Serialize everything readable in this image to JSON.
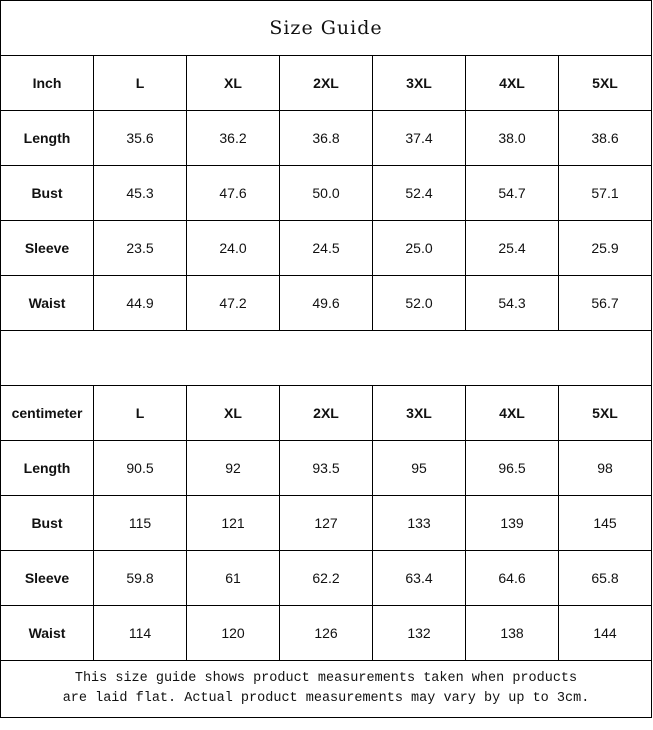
{
  "title": "Size Guide",
  "tables": [
    {
      "unit": "Inch",
      "sizes": [
        "L",
        "XL",
        "2XL",
        "3XL",
        "4XL",
        "5XL"
      ],
      "rows": [
        {
          "label": "Length",
          "values": [
            "35.6",
            "36.2",
            "36.8",
            "37.4",
            "38.0",
            "38.6"
          ]
        },
        {
          "label": "Bust",
          "values": [
            "45.3",
            "47.6",
            "50.0",
            "52.4",
            "54.7",
            "57.1"
          ]
        },
        {
          "label": "Sleeve",
          "values": [
            "23.5",
            "24.0",
            "24.5",
            "25.0",
            "25.4",
            "25.9"
          ]
        },
        {
          "label": "Waist",
          "values": [
            "44.9",
            "47.2",
            "49.6",
            "52.0",
            "54.3",
            "56.7"
          ]
        }
      ]
    },
    {
      "unit": "centimeter",
      "sizes": [
        "L",
        "XL",
        "2XL",
        "3XL",
        "4XL",
        "5XL"
      ],
      "rows": [
        {
          "label": "Length",
          "values": [
            "90.5",
            "92",
            "93.5",
            "95",
            "96.5",
            "98"
          ]
        },
        {
          "label": "Bust",
          "values": [
            "115",
            "121",
            "127",
            "133",
            "139",
            "145"
          ]
        },
        {
          "label": "Sleeve",
          "values": [
            "59.8",
            "61",
            "62.2",
            "63.4",
            "64.6",
            "65.8"
          ]
        },
        {
          "label": "Waist",
          "values": [
            "114",
            "120",
            "126",
            "132",
            "138",
            "144"
          ]
        }
      ]
    }
  ],
  "note_line1": "This size guide shows product measurements taken when products",
  "note_line2": "are laid flat. Actual product measurements may vary by up to 3cm."
}
